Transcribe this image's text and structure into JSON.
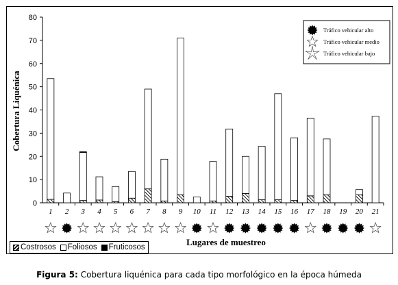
{
  "chart_data": {
    "type": "bar",
    "stacked": true,
    "ylabel": "Cobertura Liquénica",
    "xlabel": "Lugares de muestreo",
    "ylim": [
      0,
      80
    ],
    "yticks": [
      "0",
      "10",
      "20",
      "30",
      "40",
      "50",
      "60",
      "70",
      "80"
    ],
    "categories": [
      "1",
      "2",
      "3",
      "4",
      "5",
      "6",
      "7",
      "8",
      "9",
      "10",
      "11",
      "12",
      "13",
      "14",
      "15",
      "16",
      "17",
      "18",
      "19",
      "20",
      "21"
    ],
    "series": [
      {
        "name": "Costrosos",
        "pattern": "hatched",
        "values": [
          1.5,
          0,
          1,
          1.2,
          0.5,
          2,
          6,
          0.8,
          3.5,
          0,
          0.8,
          2.8,
          4,
          1.3,
          1.3,
          1,
          3,
          3.5,
          0,
          3.5,
          0
        ]
      },
      {
        "name": "Foliosos",
        "pattern": "white",
        "values": [
          52,
          4.2,
          20.7,
          10,
          6.5,
          11.5,
          43,
          18,
          67.5,
          2.5,
          17,
          29,
          16,
          23,
          45.7,
          27,
          33.5,
          24,
          0,
          2.2,
          37.3
        ]
      },
      {
        "name": "Fruticosos",
        "pattern": "black",
        "values": [
          0,
          0,
          0.3,
          0,
          0,
          0,
          0,
          0,
          0,
          0,
          0,
          0,
          0,
          0,
          0,
          0,
          0,
          0,
          0,
          0,
          0
        ]
      }
    ],
    "traffic": [
      "medio",
      "alto",
      "medio",
      "medio",
      "medio",
      "medio",
      "medio",
      "medio",
      "medio",
      "alto",
      "medio",
      "alto",
      "alto",
      "alto",
      "alto",
      "alto",
      "medio",
      "alto",
      "alto",
      "alto",
      "medio"
    ],
    "traffic_legend": [
      {
        "key": "alto",
        "label": "Tráfico vehicular alto",
        "icon": "filled-sun-icon"
      },
      {
        "key": "medio",
        "label": "Tráfico vehicular medio",
        "icon": "outline-star-icon"
      },
      {
        "key": "bajo",
        "label": "Tráfico vehicular bajo",
        "icon": "outline-thin-star-icon"
      }
    ],
    "legend_position": "bottom-left",
    "grid": false
  },
  "caption": {
    "label": "Figura 5:",
    "text": "Cobertura liquénica para cada tipo morfológico en la época húmeda"
  }
}
